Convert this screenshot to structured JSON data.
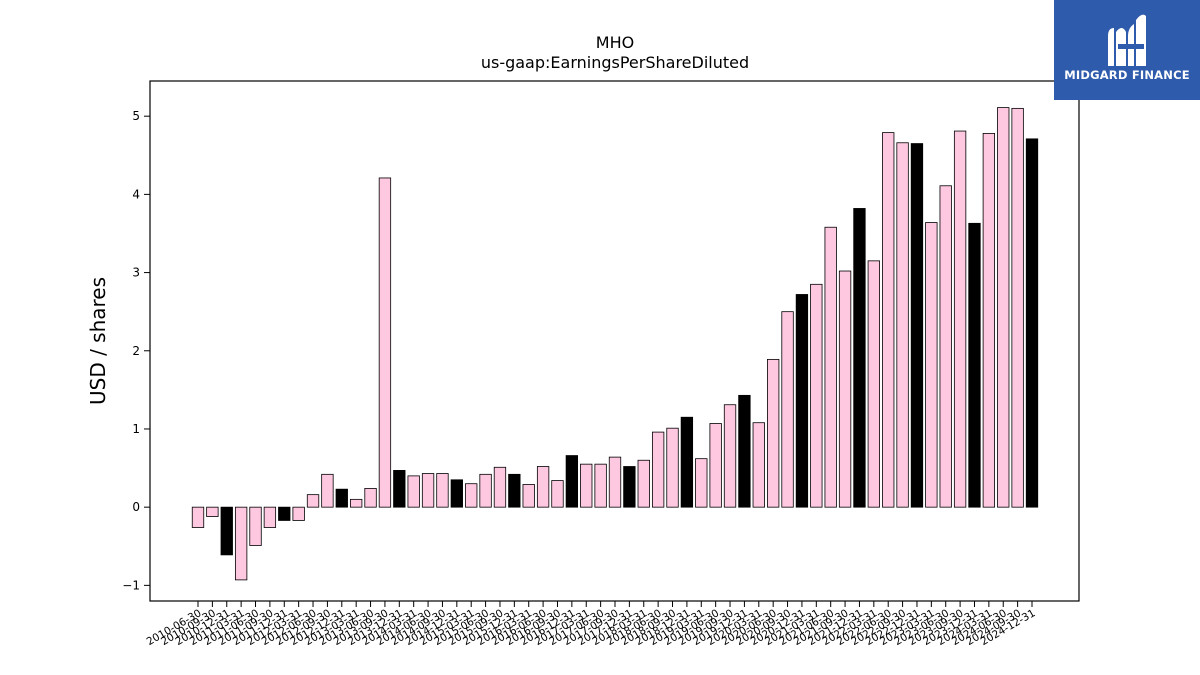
{
  "brand": {
    "name": "MIDGARD FINANCE",
    "logo_icon": "midgard-mh-monogram-icon",
    "background_color": "#2e5bab"
  },
  "chart_data": {
    "type": "bar",
    "title": "MHO",
    "subtitle": "us-gaap:EarningsPerShareDiluted",
    "xlabel": "",
    "ylabel": "USD / shares",
    "ylim": [
      -1.2,
      5.45
    ],
    "yticks": [
      -1,
      0,
      1,
      2,
      3,
      4,
      5
    ],
    "ytick_labels": [
      "−1",
      "0",
      "1",
      "2",
      "3",
      "4",
      "5"
    ],
    "grid": false,
    "colors": {
      "quarter": "#ffc8e1",
      "annual": "#000000",
      "edge": "#000000"
    },
    "categories": [
      "2010-06-30",
      "2010-09-30",
      "2010-12-31",
      "2011-03-31",
      "2011-06-30",
      "2011-09-30",
      "2011-12-31",
      "2012-03-31",
      "2012-06-30",
      "2012-09-30",
      "2012-12-31",
      "2013-03-31",
      "2013-06-30",
      "2013-09-30",
      "2013-12-31",
      "2014-03-31",
      "2014-06-30",
      "2014-09-30",
      "2014-12-31",
      "2015-03-31",
      "2015-06-30",
      "2015-09-30",
      "2015-12-31",
      "2016-03-31",
      "2016-06-30",
      "2016-09-30",
      "2016-12-31",
      "2017-03-31",
      "2017-06-30",
      "2017-09-30",
      "2017-12-31",
      "2018-03-31",
      "2018-06-30",
      "2018-09-30",
      "2018-12-31",
      "2019-03-31",
      "2019-06-30",
      "2019-09-30",
      "2019-12-31",
      "2020-03-31",
      "2020-06-30",
      "2020-09-30",
      "2020-12-31",
      "2021-03-31",
      "2021-06-30",
      "2021-09-30",
      "2021-12-31",
      "2022-03-31",
      "2022-06-30",
      "2022-09-30",
      "2022-12-31",
      "2023-03-31",
      "2023-06-30",
      "2023-09-30",
      "2023-12-31",
      "2024-03-31",
      "2024-06-30",
      "2024-09-30",
      "2024-12-31"
    ],
    "values": [
      -0.26,
      -0.12,
      -0.61,
      -0.93,
      -0.49,
      -0.26,
      -0.17,
      -0.17,
      0.16,
      0.42,
      0.23,
      0.1,
      0.24,
      4.21,
      0.47,
      0.4,
      0.43,
      0.43,
      0.35,
      0.3,
      0.42,
      0.51,
      0.42,
      0.29,
      0.52,
      0.34,
      0.66,
      0.55,
      0.55,
      0.64,
      0.52,
      0.6,
      0.96,
      1.01,
      1.15,
      0.62,
      1.07,
      1.31,
      1.43,
      1.08,
      1.89,
      2.5,
      2.72,
      2.85,
      3.58,
      3.02,
      3.82,
      3.15,
      4.79,
      4.66,
      4.65,
      3.64,
      4.11,
      4.81,
      3.63,
      4.78,
      5.11,
      5.1,
      4.71
    ],
    "annual": [
      false,
      false,
      true,
      false,
      false,
      false,
      true,
      false,
      false,
      false,
      true,
      false,
      false,
      false,
      true,
      false,
      false,
      false,
      true,
      false,
      false,
      false,
      true,
      false,
      false,
      false,
      true,
      false,
      false,
      false,
      true,
      false,
      false,
      false,
      true,
      false,
      false,
      false,
      true,
      false,
      false,
      false,
      true,
      false,
      false,
      false,
      true,
      false,
      false,
      false,
      true,
      false,
      false,
      false,
      true,
      false,
      false,
      false,
      true
    ]
  }
}
